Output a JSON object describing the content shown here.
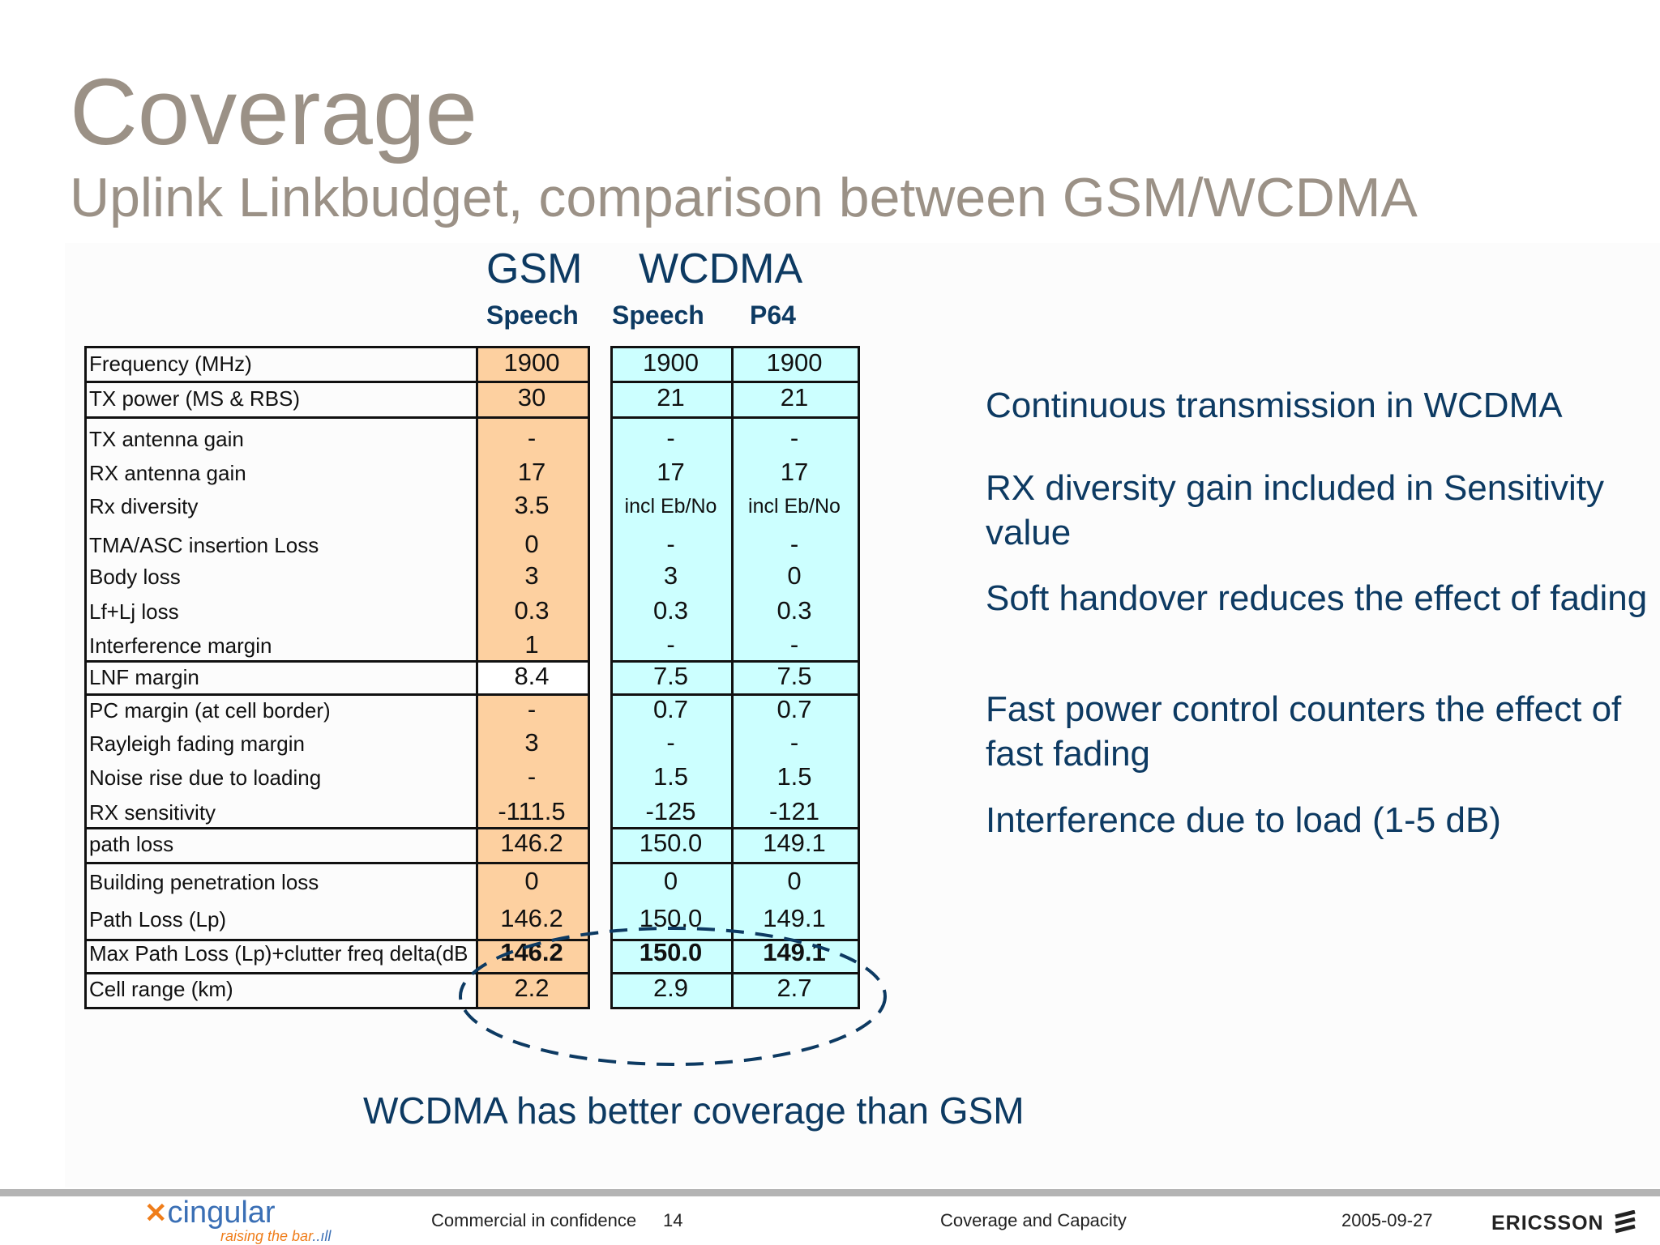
{
  "title": "Coverage",
  "subtitle": "Uplink Linkbudget, comparison between GSM/WCDMA",
  "columns": {
    "gsm_header": "GSM",
    "wcdma_header": "WCDMA",
    "sub": [
      "Speech",
      "Speech",
      "P64"
    ]
  },
  "table": {
    "rows": [
      {
        "label": "Frequency (MHz)",
        "gsm": "1900",
        "wcdma_speech": "1900",
        "wcdma_p64": "1900"
      },
      {
        "label": "TX power (MS & RBS)",
        "gsm": "30",
        "wcdma_speech": "21",
        "wcdma_p64": "21"
      },
      {
        "label": "TX antenna gain",
        "gsm": "-",
        "wcdma_speech": "-",
        "wcdma_p64": "-"
      },
      {
        "label": "RX antenna gain",
        "gsm": "17",
        "wcdma_speech": "17",
        "wcdma_p64": "17"
      },
      {
        "label": "Rx diversity",
        "gsm": "3.5",
        "wcdma_speech": "incl Eb/No",
        "wcdma_p64": "incl Eb/No"
      },
      {
        "label": "TMA/ASC insertion Loss",
        "gsm": "0",
        "wcdma_speech": "-",
        "wcdma_p64": "-"
      },
      {
        "label": "Body loss",
        "gsm": "3",
        "wcdma_speech": "3",
        "wcdma_p64": "0"
      },
      {
        "label": "Lf+Lj loss",
        "gsm": "0.3",
        "wcdma_speech": "0.3",
        "wcdma_p64": "0.3"
      },
      {
        "label": "Interference margin",
        "gsm": "1",
        "wcdma_speech": "-",
        "wcdma_p64": "-"
      },
      {
        "label": "LNF margin",
        "gsm": "8.4",
        "wcdma_speech": "7.5",
        "wcdma_p64": "7.5"
      },
      {
        "label": "PC margin (at cell border)",
        "gsm": "-",
        "wcdma_speech": "0.7",
        "wcdma_p64": "0.7"
      },
      {
        "label": "Rayleigh fading margin",
        "gsm": "3",
        "wcdma_speech": "-",
        "wcdma_p64": "-"
      },
      {
        "label": "Noise rise due to loading",
        "gsm": "-",
        "wcdma_speech": "1.5",
        "wcdma_p64": "1.5"
      },
      {
        "label": "RX sensitivity",
        "gsm": "-111.5",
        "wcdma_speech": "-125",
        "wcdma_p64": "-121"
      },
      {
        "label": "path loss",
        "gsm": "146.2",
        "wcdma_speech": "150.0",
        "wcdma_p64": "149.1"
      },
      {
        "label": "Building penetration loss",
        "gsm": "0",
        "wcdma_speech": "0",
        "wcdma_p64": "0"
      },
      {
        "label": "Path Loss (Lp)",
        "gsm": "146.2",
        "wcdma_speech": "150.0",
        "wcdma_p64": "149.1"
      },
      {
        "label": "Max Path Loss (Lp)+clutter freq delta(dB",
        "gsm": "146.2",
        "wcdma_speech": "150.0",
        "wcdma_p64": "149.1"
      },
      {
        "label": "Cell range (km)",
        "gsm": "2.2",
        "wcdma_speech": "2.9",
        "wcdma_p64": "2.7"
      }
    ]
  },
  "bullets": [
    "Continuous transmission in WCDMA",
    "RX diversity gain included in Sensitivity value",
    "Soft handover reduces the effect of fading",
    "Fast power control counters the effect of fast fading",
    "Interference due to load (1-5 dB)"
  ],
  "conclusion": "WCDMA has better coverage than GSM",
  "footer": {
    "confidential": "Commercial in confidence",
    "page": "14",
    "section": "Coverage and Capacity",
    "date": "2005-09-27",
    "logo_left_word": "cingular",
    "logo_left_tagline": "raising the bar",
    "logo_right": "ERICSSON"
  },
  "colors": {
    "title": "#9b9186",
    "navy": "#0d3a62",
    "gsm_fill": "#fdd0a0",
    "wcdma_fill": "#ccffff",
    "ellipse": "#0d3a62"
  },
  "icons": [
    "cingular-logo-icon",
    "ericsson-logo-icon",
    "dashed-ellipse-highlight"
  ]
}
